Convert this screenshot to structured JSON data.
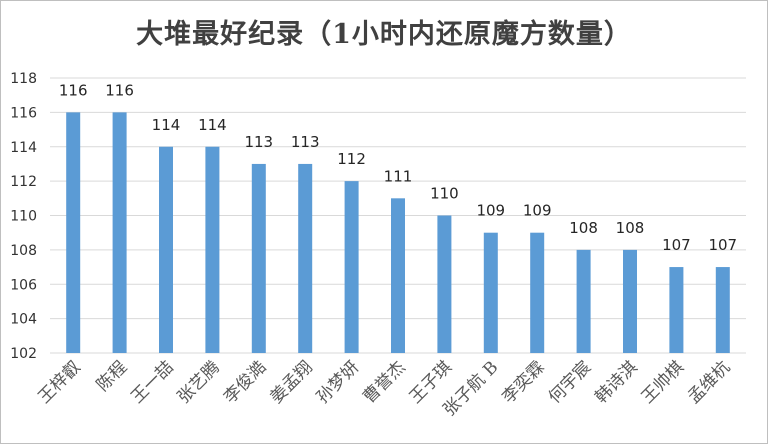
{
  "chart_data": {
    "type": "bar",
    "title": "大堆最好纪录（1小时内还原魔方数量）",
    "xlabel": "",
    "ylabel": "",
    "categories": [
      "王梓叡",
      "陈程",
      "王一喆",
      "张艺腾",
      "李俊澔",
      "姜孟翔",
      "孙梦妍",
      "曹誉杰",
      "王子琪",
      "张子航 B",
      "李奕霖",
      "何宇宸",
      "韩诗淇",
      "王帅棋",
      "孟维杭"
    ],
    "values": [
      116,
      116,
      114,
      114,
      113,
      113,
      112,
      111,
      110,
      109,
      109,
      108,
      108,
      107,
      107
    ],
    "ylim": [
      102,
      118
    ],
    "yticks": [
      102,
      104,
      106,
      108,
      110,
      112,
      114,
      116,
      118
    ],
    "grid": true,
    "bar_color": "#5b9bd5",
    "grid_color": "#d9d9d9"
  }
}
